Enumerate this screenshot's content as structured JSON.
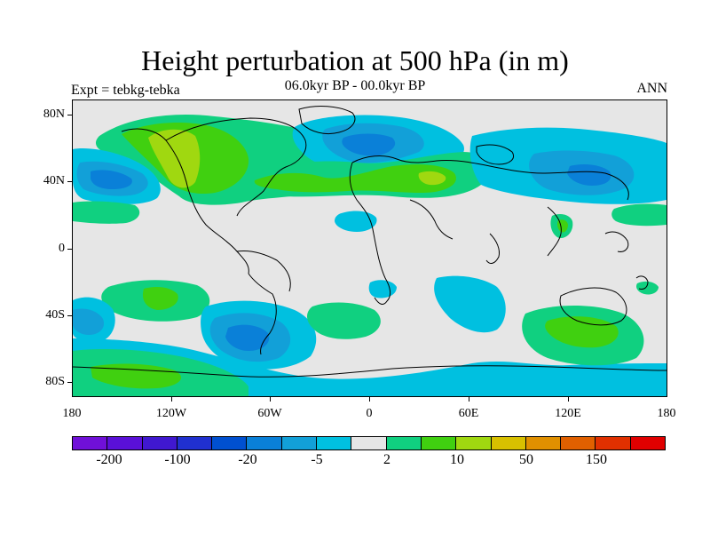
{
  "title": "Height perturbation at 500 hPa (in m)",
  "subtitle": "06.0kyr BP - 00.0kyr BP",
  "experiment": "Expt = tebkg-tebka",
  "season": "ANN",
  "lat_labels": [
    "80N",
    "40N",
    "0",
    "40S",
    "80S"
  ],
  "lon_labels": [
    "180",
    "120W",
    "60W",
    "0",
    "60E",
    "120E",
    "180"
  ],
  "colorbar": {
    "colors": [
      "#7010d8",
      "#5a10d8",
      "#4018d0",
      "#2030d0",
      "#0050d0",
      "#0a80d8",
      "#12a0d8",
      "#00c0e0",
      "#e6e6e6",
      "#10d080",
      "#40d010",
      "#a0d810",
      "#d8c000",
      "#e09000",
      "#e06000",
      "#e03000",
      "#e00000"
    ],
    "labels": [
      "-200",
      "-100",
      "-20",
      "-5",
      "2",
      "10",
      "50",
      "150"
    ]
  },
  "palette": {
    "neutral": "#e6e6e6",
    "neg_weak": "#00c0e0",
    "neg_mid": "#12a0d8",
    "neg_strong": "#0a80d8",
    "pos_weak": "#10d080",
    "pos_mid": "#40d010",
    "pos_strong": "#a0d810"
  }
}
